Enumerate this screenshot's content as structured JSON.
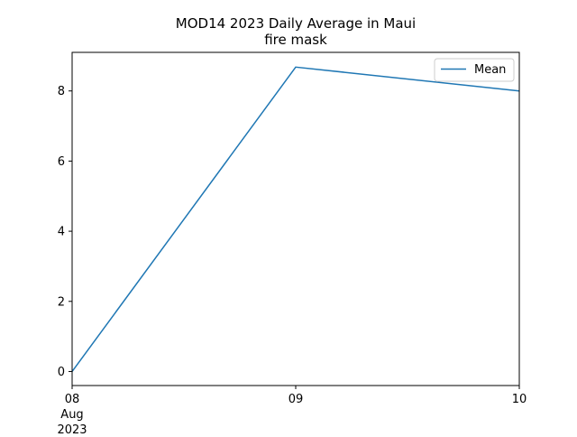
{
  "chart_data": {
    "type": "line",
    "title_line1": "MOD14 2023 Daily Average in Maui",
    "title_line2": "fire mask",
    "xlabel": "",
    "ylabel": "",
    "x": [
      "2023-08-08",
      "2023-08-09",
      "2023-08-10"
    ],
    "x_tick_labels": [
      "08",
      "09",
      "10"
    ],
    "x_tick_sublabels": [
      "Aug",
      "2023"
    ],
    "xlim": [
      "2023-08-08",
      "2023-08-10"
    ],
    "ylim": [
      -0.4,
      9.1
    ],
    "y_ticks": [
      0,
      2,
      4,
      6,
      8
    ],
    "series": [
      {
        "name": "Mean",
        "values": [
          0.0,
          8.68,
          8.0
        ],
        "color": "#1f77b4"
      }
    ],
    "legend": "top-right",
    "grid": false
  }
}
